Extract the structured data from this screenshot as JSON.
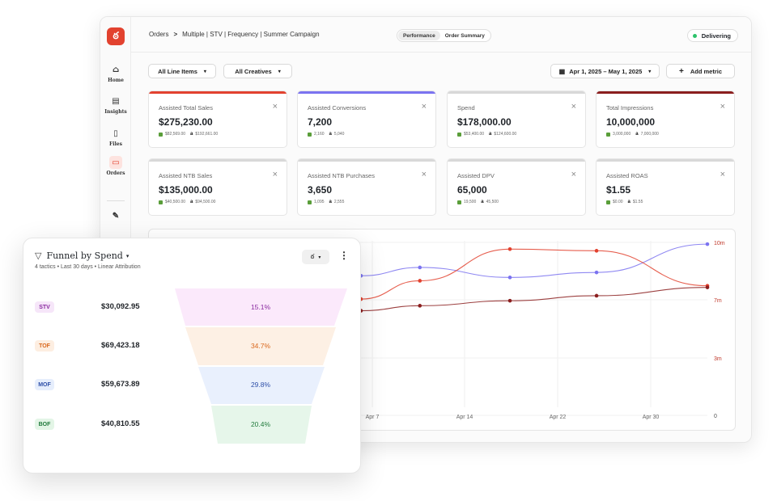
{
  "sidebar": {
    "items": [
      {
        "label": "Home"
      },
      {
        "label": "Insights"
      },
      {
        "label": "Files"
      },
      {
        "label": "Orders"
      }
    ]
  },
  "breadcrumb": {
    "root": "Orders",
    "separator": ">",
    "current": "Multiple | STV | Frequency | Summer Campaign"
  },
  "view_toggle": {
    "options": [
      "Performance",
      "Order Summary"
    ],
    "active": "Performance"
  },
  "status": {
    "label": "Delivering",
    "color": "#2cc36b"
  },
  "filters": {
    "line_items": "All Line Items",
    "creatives": "All Creatives",
    "date_range": "Apr 1, 2025 – May 1, 2025",
    "add_metric": "Add metric"
  },
  "metrics": [
    {
      "label": "Assisted Total Sales",
      "value": "$275,230.00",
      "a": "$82,569.00",
      "b": "$192,661.00",
      "color": "#e2422f"
    },
    {
      "label": "Assisted Conversions",
      "value": "7,200",
      "a": "2,160",
      "b": "5,040",
      "color": "#7b73f0"
    },
    {
      "label": "Spend",
      "value": "$178,000.00",
      "a": "$53,400.00",
      "b": "$124,600.00",
      "color": "#d8d8d8"
    },
    {
      "label": "Total Impressions",
      "value": "10,000,000",
      "a": "3,000,000",
      "b": "7,000,000",
      "color": "#8b1f1f"
    },
    {
      "label": "Assisted NTB Sales",
      "value": "$135,000.00",
      "a": "$40,500.00",
      "b": "$94,500.00",
      "color": "#d8d8d8"
    },
    {
      "label": "Assisted NTB Purchases",
      "value": "3,650",
      "a": "1,095",
      "b": "2,555",
      "color": "#d8d8d8"
    },
    {
      "label": "Assisted DPV",
      "value": "65,000",
      "a": "19,500",
      "b": "45,500",
      "color": "#d8d8d8"
    },
    {
      "label": "Assisted ROAS",
      "value": "$1.55",
      "a": "$0.00",
      "b": "$1.55",
      "color": "#d8d8d8"
    }
  ],
  "chart_data": {
    "type": "line",
    "x": [
      "Apr 7",
      "Apr 14",
      "Apr 22",
      "Apr 30"
    ],
    "y_ticks": [
      "10m",
      "7m",
      "3m",
      "0"
    ],
    "ylim": [
      0,
      10000000
    ],
    "grid": true,
    "series": [
      {
        "color": "#7b73f0",
        "points": [
          [
            0.0,
            7.9
          ],
          [
            0.17,
            8.4
          ],
          [
            0.43,
            7.8
          ],
          [
            0.68,
            8.1
          ],
          [
            1.0,
            9.8
          ]
        ]
      },
      {
        "color": "#e2422f",
        "points": [
          [
            0.0,
            6.5
          ],
          [
            0.17,
            7.6
          ],
          [
            0.43,
            9.5
          ],
          [
            0.68,
            9.4
          ],
          [
            1.0,
            7.3
          ]
        ]
      },
      {
        "color": "#8b1f1f",
        "points": [
          [
            0.0,
            5.8
          ],
          [
            0.17,
            6.1
          ],
          [
            0.43,
            6.4
          ],
          [
            0.68,
            6.7
          ],
          [
            1.0,
            7.2
          ]
        ]
      }
    ]
  },
  "funnel": {
    "title_prefix": "Funnel by",
    "title_metric": "Spend",
    "subtitle": "4 tactics • Last 30 days • Linear Attribution",
    "rows": [
      {
        "tactic": "STV",
        "amount": "$30,092.95",
        "pct": "15.1%",
        "tag_bg": "#f6e6f9",
        "tag_fg": "#8a2aa0",
        "fill": "#fbe9fb",
        "text": "#8a2aa0"
      },
      {
        "tactic": "TOF",
        "amount": "$69,423.18",
        "pct": "34.7%",
        "tag_bg": "#fdeee1",
        "tag_fg": "#d9681d",
        "fill": "#fdf0e4",
        "text": "#d9681d"
      },
      {
        "tactic": "MOF",
        "amount": "$59,673.89",
        "pct": "29.8%",
        "tag_bg": "#e6eefc",
        "tag_fg": "#2e4fa8",
        "fill": "#e9f0fd",
        "text": "#2e4fa8"
      },
      {
        "tactic": "BOF",
        "amount": "$40,810.55",
        "pct": "20.4%",
        "tag_bg": "#e3f5e6",
        "tag_fg": "#217a3c",
        "fill": "#e6f6ea",
        "text": "#217a3c"
      }
    ]
  }
}
